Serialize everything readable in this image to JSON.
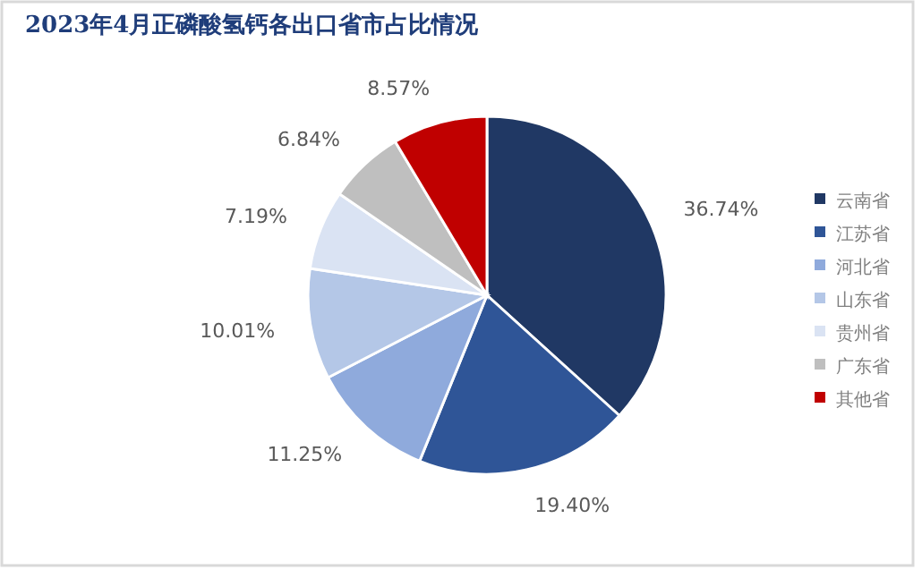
{
  "chart_data": {
    "type": "pie",
    "title": "2023年4月正磷酸氢钙各出口省市占比情况",
    "categories": [
      "云南省",
      "江苏省",
      "河北省",
      "山东省",
      "贵州省",
      "广东省",
      "其他省"
    ],
    "values": [
      36.74,
      19.4,
      11.25,
      10.01,
      7.19,
      6.84,
      8.57
    ],
    "colors": [
      "#203864",
      "#2f5597",
      "#8faadc",
      "#b4c7e7",
      "#dae3f3",
      "#bfbfbf",
      "#c00000"
    ],
    "value_labels": [
      "36.74%",
      "19.40%",
      "11.25%",
      "10.01%",
      "7.19%",
      "6.84%",
      "8.57%"
    ],
    "legend": "right"
  }
}
